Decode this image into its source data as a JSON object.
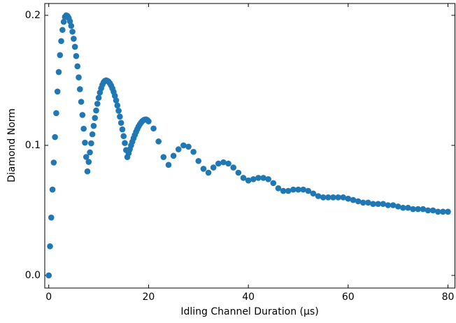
{
  "chart_data": {
    "type": "scatter",
    "xlabel": "Idling Channel Duration (μs)",
    "ylabel": "Diamond Norm",
    "color": "#1f77b4",
    "xlim": [
      -0.8,
      81.4
    ],
    "ylim": [
      -0.0097,
      0.2091
    ],
    "xticks": [
      0,
      20,
      40,
      60,
      80
    ],
    "yticks": [
      {
        "value": 0,
        "label": "0.0"
      },
      {
        "value": 0.1,
        "label": "0.1"
      },
      {
        "value": 0.2,
        "label": "0.2"
      }
    ],
    "grid": false,
    "x": [
      0,
      0.25,
      0.5,
      0.75,
      1,
      1.25,
      1.5,
      1.75,
      2,
      2.25,
      2.5,
      2.75,
      3,
      3.25,
      3.5,
      3.75,
      4,
      4.25,
      4.5,
      4.75,
      5,
      5.25,
      5.5,
      5.75,
      6,
      6.25,
      6.5,
      6.75,
      7,
      7.25,
      7.5,
      7.75,
      8,
      8.25,
      8.5,
      8.75,
      9,
      9.25,
      9.5,
      9.75,
      10,
      10.25,
      10.5,
      10.75,
      11,
      11.25,
      11.5,
      11.75,
      12,
      12.25,
      12.5,
      12.75,
      13,
      13.25,
      13.5,
      13.75,
      14,
      14.25,
      14.5,
      14.75,
      15,
      15.25,
      15.5,
      15.75,
      16,
      16.25,
      16.5,
      16.75,
      17,
      17.25,
      17.5,
      17.75,
      18,
      18.25,
      18.5,
      18.75,
      19,
      19.25,
      19.5,
      19.75,
      20,
      21,
      22,
      23,
      24,
      25,
      26,
      27,
      28,
      29,
      30,
      31,
      32,
      33,
      34,
      35,
      36,
      37,
      38,
      39,
      40,
      41,
      42,
      43,
      44,
      45,
      46,
      47,
      48,
      49,
      50,
      51,
      52,
      53,
      54,
      55,
      56,
      57,
      58,
      59,
      60,
      61,
      62,
      63,
      64,
      65,
      66,
      67,
      68,
      69,
      70,
      71,
      72,
      73,
      74,
      75,
      76,
      77,
      78,
      79,
      80
    ],
    "values": [
      0,
      0.0224,
      0.0445,
      0.066,
      0.0868,
      0.1064,
      0.1248,
      0.1414,
      0.1564,
      0.1694,
      0.1802,
      0.1888,
      0.195,
      0.1988,
      0.2,
      0.1995,
      0.198,
      0.1954,
      0.1919,
      0.1874,
      0.182,
      0.1758,
      0.1687,
      0.1608,
      0.1523,
      0.1432,
      0.1335,
      0.1234,
      0.1128,
      0.1021,
      0.0911,
      0.08,
      0.0873,
      0.0946,
      0.1016,
      0.1085,
      0.115,
      0.1211,
      0.1268,
      0.132,
      0.1366,
      0.1406,
      0.1439,
      0.1466,
      0.1485,
      0.1496,
      0.15,
      0.1497,
      0.149,
      0.1477,
      0.146,
      0.1438,
      0.1412,
      0.1381,
      0.1346,
      0.1307,
      0.1266,
      0.1221,
      0.1173,
      0.1123,
      0.1071,
      0.1018,
      0.0964,
      0.091,
      0.094,
      0.097,
      0.1,
      0.1028,
      0.1055,
      0.108,
      0.1104,
      0.1125,
      0.1145,
      0.1161,
      0.1175,
      0.1186,
      0.1194,
      0.1198,
      0.12,
      0.1195,
      0.1185,
      0.113,
      0.103,
      0.091,
      0.085,
      0.092,
      0.097,
      0.1,
      0.099,
      0.095,
      0.088,
      0.082,
      0.079,
      0.083,
      0.086,
      0.087,
      0.086,
      0.083,
      0.079,
      0.075,
      0.073,
      0.074,
      0.075,
      0.075,
      0.074,
      0.071,
      0.067,
      0.065,
      0.065,
      0.066,
      0.066,
      0.066,
      0.065,
      0.063,
      0.061,
      0.06,
      0.06,
      0.06,
      0.06,
      0.06,
      0.059,
      0.058,
      0.057,
      0.056,
      0.056,
      0.055,
      0.055,
      0.055,
      0.054,
      0.054,
      0.053,
      0.052,
      0.052,
      0.051,
      0.051,
      0.051,
      0.05,
      0.05,
      0.049,
      0.049,
      0.049
    ]
  }
}
